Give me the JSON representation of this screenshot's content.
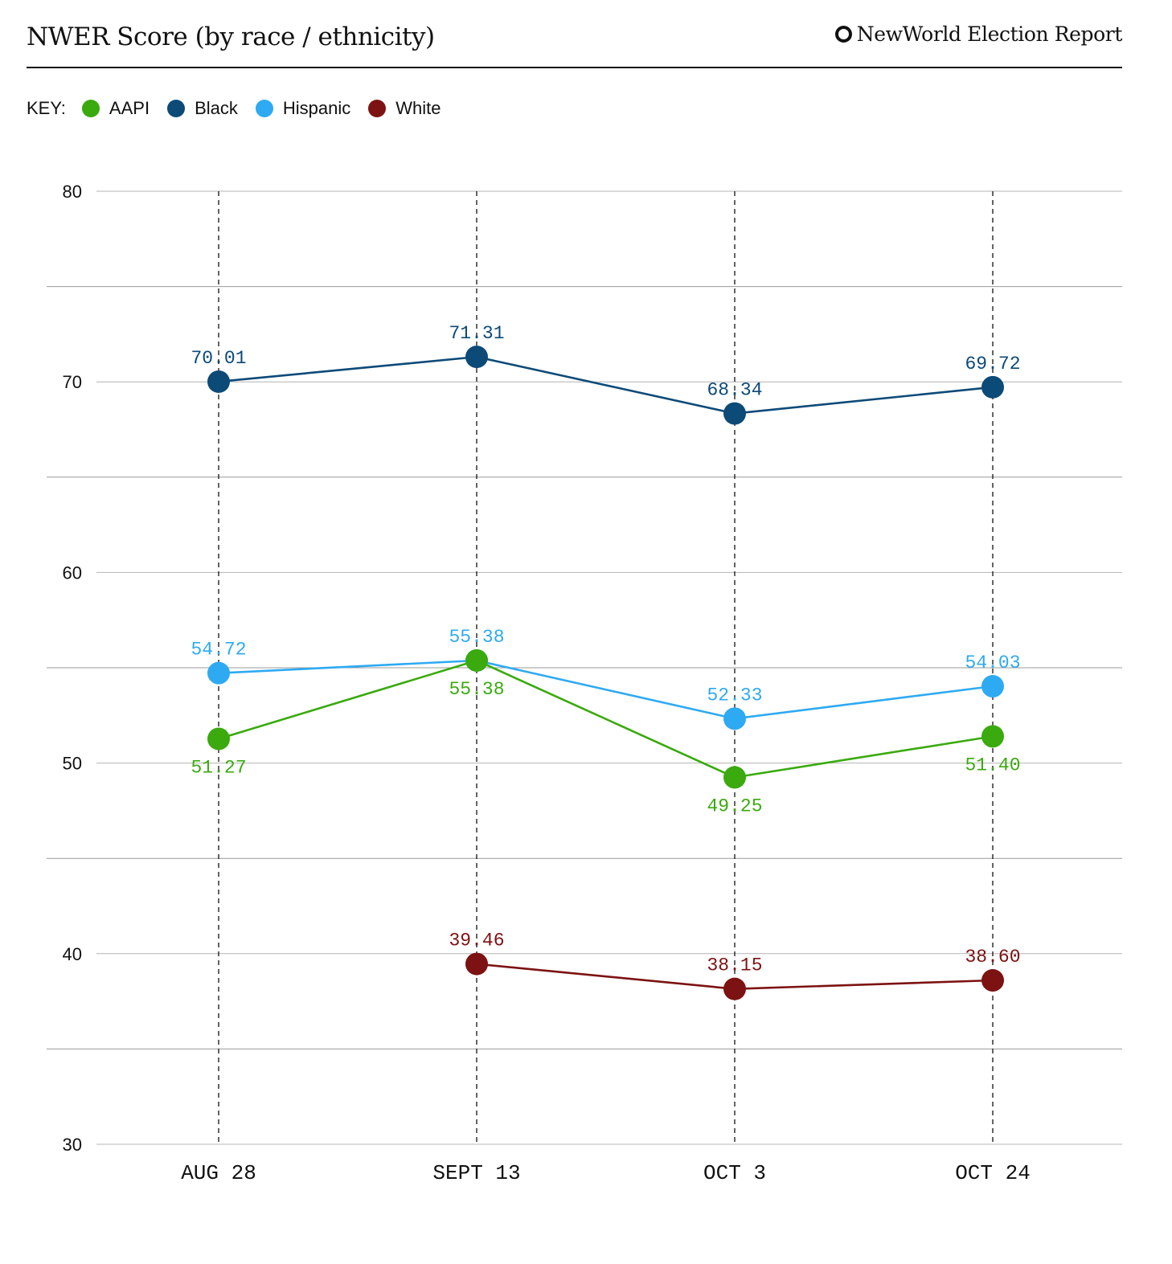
{
  "header": {
    "title": "NWER Score (by race / ethnicity)",
    "brand": "NewWorld Election Report"
  },
  "legend": {
    "title": "KEY:"
  },
  "chart_data": {
    "type": "line",
    "title": "NWER Score (by race / ethnicity)",
    "xlabel": "",
    "ylabel": "",
    "categories": [
      "AUG 28",
      "SEPT 13",
      "OCT 3",
      "OCT 24"
    ],
    "ylim": [
      30,
      80
    ],
    "yticks": [
      30,
      40,
      50,
      60,
      70,
      80
    ],
    "grid_step": 5,
    "legend_position": "top-left",
    "series": [
      {
        "name": "AAPI",
        "color": "#3aaa0e",
        "values": [
          51.27,
          55.38,
          49.25,
          51.4
        ],
        "labels": [
          "51.27",
          "55.38",
          "49.25",
          "51.40"
        ],
        "label_side": [
          "below",
          "below",
          "below",
          "below"
        ]
      },
      {
        "name": "Black",
        "color": "#0c4a78",
        "values": [
          70.01,
          71.31,
          68.34,
          69.72
        ],
        "labels": [
          "70.01",
          "71.31",
          "68.34",
          "69.72"
        ],
        "label_side": [
          "above",
          "above",
          "above",
          "above"
        ]
      },
      {
        "name": "Hispanic",
        "color": "#2eaaf2",
        "values": [
          54.72,
          55.38,
          52.33,
          54.03
        ],
        "labels": [
          "54.72",
          "55.38",
          "52.33",
          "54.03"
        ],
        "label_side": [
          "above",
          "above",
          "above",
          "above"
        ]
      },
      {
        "name": "White",
        "color": "#7d1212",
        "values": [
          null,
          39.46,
          38.15,
          38.6
        ],
        "labels": [
          "",
          "39.46",
          "38.15",
          "38.60"
        ],
        "label_side": [
          "above",
          "above",
          "above",
          "above"
        ]
      }
    ]
  }
}
